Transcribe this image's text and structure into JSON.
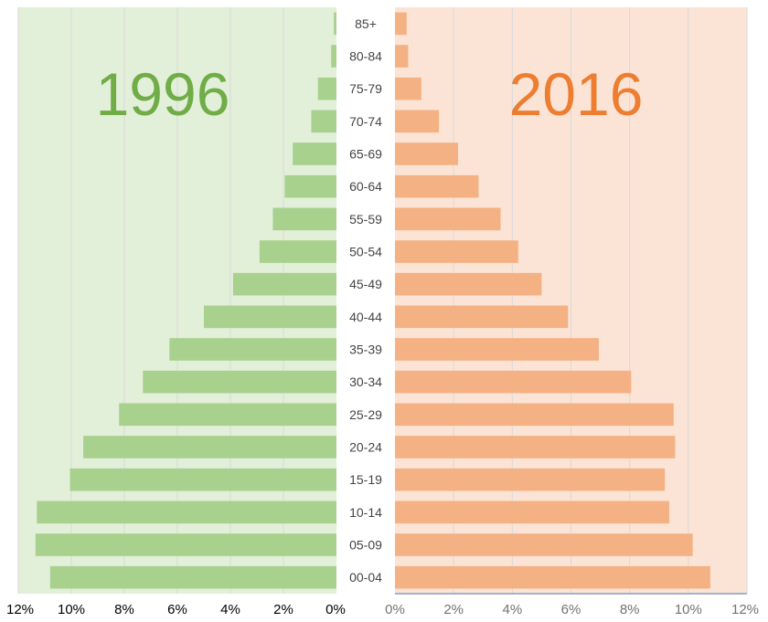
{
  "chart_data": {
    "type": "bar",
    "orientation": "horizontal",
    "layout": "population-pyramid",
    "categories": [
      "85+",
      "80-84",
      "75-79",
      "70-74",
      "65-69",
      "60-64",
      "55-59",
      "50-54",
      "45-49",
      "40-44",
      "35-39",
      "30-34",
      "25-29",
      "20-24",
      "15-19",
      "10-14",
      "05-09",
      "00-04"
    ],
    "series": [
      {
        "name": "1996",
        "side": "left",
        "color": "#a9d18e",
        "panel_color": "#e2efd9",
        "label_color": "#70ad47",
        "values": [
          0.1,
          0.2,
          0.7,
          0.95,
          1.65,
          1.95,
          2.4,
          2.9,
          3.9,
          5.0,
          6.3,
          7.3,
          8.2,
          9.55,
          10.05,
          11.3,
          11.35,
          10.8
        ]
      },
      {
        "name": "2016",
        "side": "right",
        "color": "#f4b183",
        "panel_color": "#fbe4d5",
        "label_color": "#ed7d31",
        "values": [
          0.4,
          0.45,
          0.9,
          1.5,
          2.15,
          2.85,
          3.6,
          4.2,
          5.0,
          5.9,
          6.95,
          8.05,
          9.5,
          9.55,
          9.2,
          9.35,
          10.15,
          10.75
        ]
      }
    ],
    "xlim": [
      0,
      12
    ],
    "ticks": [
      "0%",
      "2%",
      "4%",
      "6%",
      "8%",
      "10%",
      "12%"
    ],
    "tick_values": [
      0,
      2,
      4,
      6,
      8,
      10,
      12
    ],
    "tick_colors": {
      "left": "#000000",
      "right": "#767171"
    },
    "grid": true,
    "legend": "none"
  }
}
